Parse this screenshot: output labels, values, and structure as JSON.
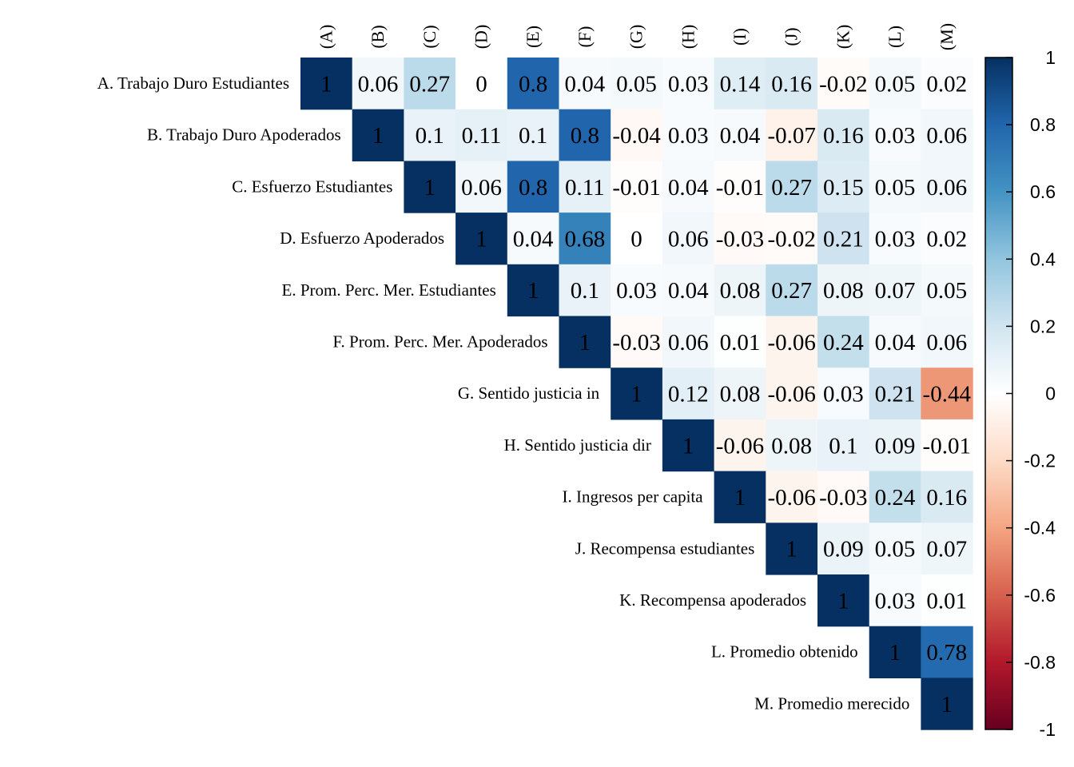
{
  "chart_data": {
    "type": "heatmap",
    "subtype": "upper-triangular correlation matrix",
    "column_labels": [
      "(A)",
      "(B)",
      "(C)",
      "(D)",
      "(E)",
      "(F)",
      "(G)",
      "(H)",
      "(I)",
      "(J)",
      "(K)",
      "(L)",
      "(M)"
    ],
    "row_labels": [
      "A. Trabajo Duro Estudiantes",
      "B. Trabajo Duro Apoderados",
      "C. Esfuerzo Estudiantes",
      "D. Esfuerzo Apoderados",
      "E. Prom. Perc. Mer. Estudiantes",
      "F. Prom. Perc. Mer. Apoderados",
      "G. Sentido justicia in",
      "H. Sentido justicia dir",
      "I. Ingresos per capita",
      "J. Recompensa estudiantes",
      "K. Recompensa apoderados",
      "L. Promedio obtenido",
      "M. Promedio merecido"
    ],
    "values": [
      [
        1,
        0.06,
        0.27,
        0,
        0.8,
        0.04,
        0.05,
        0.03,
        0.14,
        0.16,
        -0.02,
        0.05,
        0.02
      ],
      [
        1,
        0.1,
        0.11,
        0.1,
        0.8,
        -0.04,
        0.03,
        0.04,
        -0.07,
        0.16,
        0.03,
        0.06
      ],
      [
        1,
        0.06,
        0.8,
        0.11,
        -0.01,
        0.04,
        -0.01,
        0.27,
        0.15,
        0.05,
        0.06
      ],
      [
        1,
        0.04,
        0.68,
        0,
        0.06,
        -0.03,
        -0.02,
        0.21,
        0.03,
        0.02
      ],
      [
        1,
        0.1,
        0.03,
        0.04,
        0.08,
        0.27,
        0.08,
        0.07,
        0.05
      ],
      [
        1,
        -0.03,
        0.06,
        0.01,
        -0.06,
        0.24,
        0.04,
        0.06
      ],
      [
        1,
        0.12,
        0.08,
        -0.06,
        0.03,
        0.21,
        -0.44
      ],
      [
        1,
        -0.06,
        0.08,
        0.1,
        0.09,
        -0.01
      ],
      [
        1,
        -0.06,
        -0.03,
        0.24,
        0.16
      ],
      [
        1,
        0.09,
        0.05,
        0.07
      ],
      [
        1,
        0.03,
        0.01
      ],
      [
        1,
        0.78
      ],
      [
        1
      ]
    ],
    "value_range": [
      -1,
      1
    ],
    "colorbar_ticks": [
      "1",
      "0.8",
      "0.6",
      "0.4",
      "0.2",
      "0",
      "-0.2",
      "-0.4",
      "-0.6",
      "-0.8",
      "-1"
    ],
    "colorscale": [
      "#67001F",
      "#B2182B",
      "#D6604D",
      "#F4A582",
      "#FDDBC7",
      "#FFFFFF",
      "#D1E5F0",
      "#92C5DE",
      "#4393C3",
      "#2166AC",
      "#053061"
    ],
    "legend": "right"
  }
}
